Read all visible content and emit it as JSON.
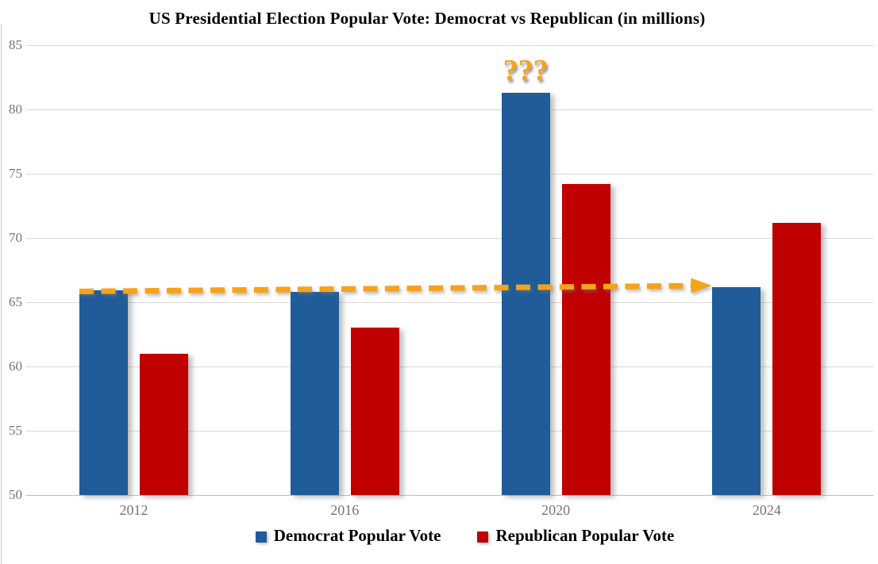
{
  "chart_data": {
    "type": "bar",
    "title": "US Presidential Election Popular Vote: Democrat vs Republican (in millions)",
    "categories": [
      "2012",
      "2016",
      "2020",
      "2024"
    ],
    "series": [
      {
        "name": "Democrat Popular Vote",
        "color": "#1F5C99",
        "values": [
          65.9,
          65.8,
          81.3,
          66.2
        ]
      },
      {
        "name": "Republican Popular Vote",
        "color": "#C00000",
        "values": [
          61.0,
          63.0,
          74.2,
          71.2
        ]
      }
    ],
    "ylim": [
      50,
      85
    ],
    "yticks": [
      85,
      80,
      75,
      70,
      65,
      60,
      55,
      50
    ],
    "ytick_interval": 5,
    "grid": true,
    "legend_position": "bottom",
    "annotations": {
      "question_marks": {
        "text": "???",
        "color": "#F5A31B",
        "position": {
          "category": "2020",
          "series": "Democrat Popular Vote",
          "placement": "above-bar"
        }
      },
      "dashed_arrow": {
        "style": "dashed",
        "direction": "right",
        "color": "#F5A31B",
        "from": {
          "category": "2012",
          "value": 65.9
        },
        "to": {
          "category": "2024",
          "value": 66.3
        }
      }
    },
    "colors": {
      "background": "#FFFFFF",
      "gridline": "#D9D9D9",
      "axis_line": "#BFBFBF",
      "tick_label": "#757575",
      "title_text": "#000000",
      "legend_text": "#000000"
    }
  }
}
